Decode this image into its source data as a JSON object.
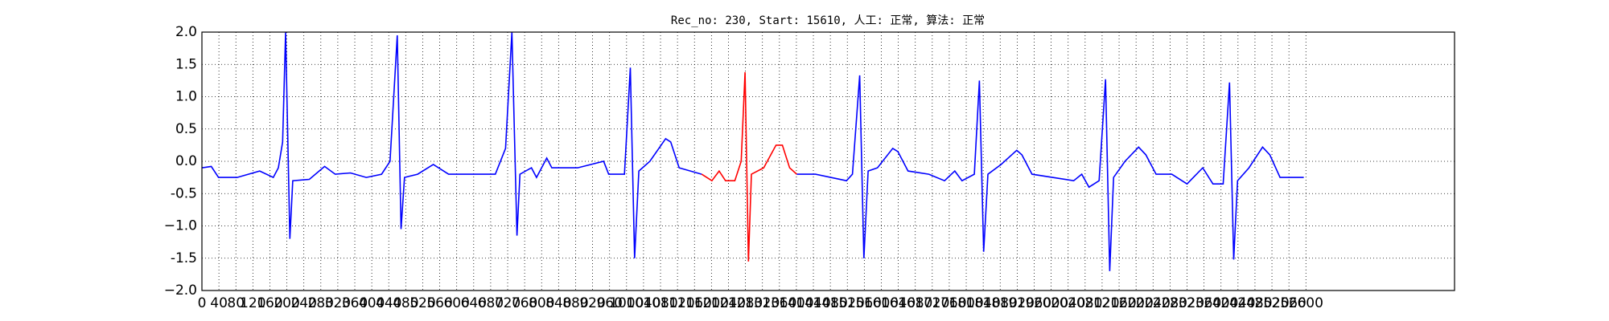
{
  "chart_data": {
    "type": "line",
    "title": "Rec_no: 230, Start: 15610, 人工: 正常, 算法: 正常",
    "xlim": [
      0,
      2950
    ],
    "ylim": [
      -2.0,
      2.0
    ],
    "xticks": [
      0,
      40,
      80,
      120,
      160,
      200,
      240,
      280,
      320,
      360,
      400,
      440,
      480,
      520,
      560,
      600,
      640,
      680,
      720,
      760,
      800,
      840,
      880,
      920,
      960,
      1000,
      1040,
      1080,
      1120,
      1160,
      1200,
      1240,
      1280,
      1320,
      1360,
      1400,
      1440,
      1480,
      1520,
      1560,
      1600,
      1640,
      1680,
      1720,
      1760,
      1800,
      1840,
      1880,
      1920,
      1960,
      2000,
      2040,
      2080,
      2120,
      2160,
      2200,
      2240,
      2280,
      2320,
      2360,
      2400,
      2440,
      2480,
      2520,
      2560,
      2600
    ],
    "yticks": [
      {
        "value": 2,
        "label": "2.0"
      },
      1.5,
      {
        "value": 1,
        "label": "1.0"
      },
      0.5,
      {
        "value": 0,
        "label": "0.0"
      },
      -0.5,
      {
        "value": -1,
        "label": "−1.0"
      },
      -1.5,
      {
        "value": -2,
        "label": "−2.0"
      }
    ],
    "grid": true,
    "series": [
      {
        "color": "#0000ff",
        "x": [
          0,
          22,
          39,
          83,
          136,
          168,
          180,
          190,
          197,
          207,
          214,
          253,
          289,
          314,
          350,
          387,
          423,
          443,
          460,
          469,
          477,
          508,
          545,
          581,
          642,
          691,
          715,
          730,
          742,
          749,
          776,
          788,
          812,
          824,
          885,
          946,
          958,
          995,
          1009,
          1019,
          1029,
          1055,
          1092,
          1104,
          1124,
          1177,
          1290,
          1401,
          1445,
          1518,
          1532,
          1549,
          1559,
          1569,
          1591,
          1627,
          1639,
          1663,
          1712,
          1749,
          1773,
          1790,
          1819,
          1831,
          1841,
          1851,
          1882,
          1919,
          1931,
          1955,
          2053,
          2072,
          2089,
          2113,
          2128,
          2138,
          2147,
          2174,
          2206,
          2223,
          2247,
          2284,
          2320,
          2357,
          2381,
          2405,
          2420,
          2430,
          2439,
          2466,
          2498,
          2515,
          2539,
          2595
        ],
        "values": [
          -0.1,
          -0.08,
          -0.25,
          -0.25,
          -0.15,
          -0.25,
          -0.1,
          0.3,
          2.0,
          -1.2,
          -0.3,
          -0.28,
          -0.08,
          -0.2,
          -0.18,
          -0.25,
          -0.2,
          0.0,
          1.95,
          -1.05,
          -0.25,
          -0.2,
          -0.05,
          -0.2,
          -0.2,
          -0.2,
          0.2,
          2.0,
          -1.15,
          -0.2,
          -0.1,
          -0.25,
          0.05,
          -0.1,
          -0.1,
          0.0,
          -0.2,
          -0.2,
          1.45,
          -1.5,
          -0.15,
          0.0,
          0.35,
          0.3,
          -0.1,
          -0.2,
          null,
          -0.2,
          -0.2,
          -0.3,
          -0.2,
          1.33,
          -1.5,
          -0.15,
          -0.1,
          0.2,
          0.15,
          -0.15,
          -0.2,
          -0.3,
          -0.15,
          -0.3,
          -0.2,
          1.25,
          -1.4,
          -0.2,
          -0.05,
          0.17,
          0.1,
          -0.2,
          -0.3,
          -0.2,
          -0.4,
          -0.3,
          1.27,
          -1.7,
          -0.25,
          0.0,
          0.22,
          0.1,
          -0.2,
          -0.2,
          -0.35,
          -0.1,
          -0.35,
          -0.35,
          1.22,
          -1.52,
          -0.3,
          -0.1,
          0.22,
          0.1,
          -0.25,
          -0.25
        ]
      },
      {
        "color": "#ff0000",
        "x": [
          1177,
          1201,
          1218,
          1233,
          1255,
          1270,
          1279,
          1287,
          1294,
          1323,
          1352,
          1367,
          1384,
          1401
        ],
        "values": [
          -0.2,
          -0.3,
          -0.15,
          -0.3,
          -0.3,
          0.0,
          1.38,
          -1.55,
          -0.2,
          -0.1,
          0.25,
          0.25,
          -0.1,
          -0.2
        ]
      }
    ]
  }
}
